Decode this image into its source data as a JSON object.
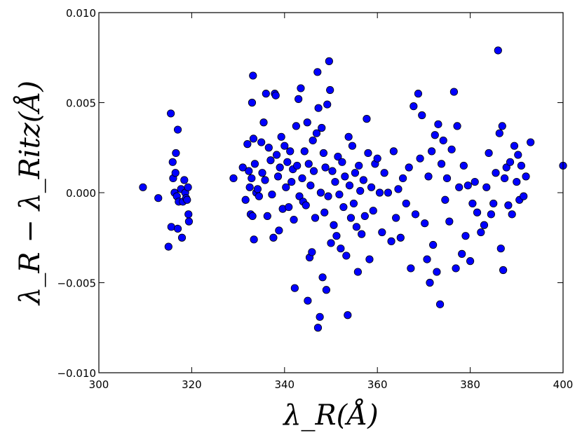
{
  "chart_data": {
    "type": "scatter",
    "title": "",
    "xlabel": "λ_R(Å)",
    "ylabel": "λ_R − λ_Ritz(Å)",
    "xlim": [
      300,
      400
    ],
    "ylim": [
      -0.01,
      0.01
    ],
    "xticks": [
      300,
      320,
      340,
      360,
      380,
      400
    ],
    "yticks": [
      -0.01,
      -0.005,
      0.0,
      0.005,
      0.01
    ],
    "xtick_labels": [
      "300",
      "320",
      "340",
      "360",
      "380",
      "400"
    ],
    "ytick_labels": [
      "−0.010",
      "−0.005",
      "0.000",
      "0.005",
      "0.010"
    ],
    "grid": false,
    "marker_color": "#0000ff",
    "marker_edge": "#000000",
    "series": [
      {
        "points": [
          [
            309.5,
            0.0003
          ],
          [
            312.8,
            -0.0003
          ],
          [
            315.0,
            -0.003
          ],
          [
            315.5,
            0.0044
          ],
          [
            315.6,
            -0.0019
          ],
          [
            315.9,
            0.0017
          ],
          [
            316.0,
            0.0008
          ],
          [
            316.3,
            0.0
          ],
          [
            316.5,
            0.0011
          ],
          [
            316.6,
            0.0022
          ],
          [
            316.8,
            -0.0002
          ],
          [
            317.0,
            0.0035
          ],
          [
            317.0,
            -0.002
          ],
          [
            317.2,
            -0.0005
          ],
          [
            317.7,
            0.0002
          ],
          [
            317.9,
            -0.0025
          ],
          [
            318.1,
            -0.0005
          ],
          [
            318.4,
            0.0007
          ],
          [
            318.6,
            0.0
          ],
          [
            318.8,
            -0.0003
          ],
          [
            319.0,
            -0.0004
          ],
          [
            319.2,
            0.0003
          ],
          [
            319.3,
            -0.0012
          ],
          [
            319.4,
            -0.0016
          ],
          [
            329.0,
            0.0008
          ],
          [
            331.0,
            0.0014
          ],
          [
            331.6,
            -0.0004
          ],
          [
            332.0,
            0.0027
          ],
          [
            332.3,
            0.0012
          ],
          [
            332.5,
            0.0003
          ],
          [
            332.7,
            -0.0012
          ],
          [
            332.9,
            0.0008
          ],
          [
            333.0,
            0.005
          ],
          [
            333.1,
            -0.0013
          ],
          [
            333.2,
            0.0065
          ],
          [
            333.3,
            0.003
          ],
          [
            333.4,
            -0.0026
          ],
          [
            333.6,
            0.0016
          ],
          [
            333.9,
            0.0
          ],
          [
            334.2,
            0.0002
          ],
          [
            334.5,
            -0.0002
          ],
          [
            335.0,
            0.0028
          ],
          [
            335.2,
            0.0011
          ],
          [
            335.5,
            0.0039
          ],
          [
            335.8,
            0.0007
          ],
          [
            336.0,
            0.0055
          ],
          [
            336.3,
            -0.0013
          ],
          [
            336.6,
            0.0025
          ],
          [
            337.0,
            0.0018
          ],
          [
            337.3,
            -0.0001
          ],
          [
            337.6,
            -0.0025
          ],
          [
            337.9,
            0.0055
          ],
          [
            338.1,
            0.0054
          ],
          [
            338.3,
            0.0021
          ],
          [
            338.6,
            0.0009
          ],
          [
            338.8,
            -0.0021
          ],
          [
            339.0,
            0.0014
          ],
          [
            339.3,
            0.0031
          ],
          [
            339.6,
            -0.0009
          ],
          [
            340.0,
            0.0026
          ],
          [
            340.3,
            0.0003
          ],
          [
            340.6,
            0.0017
          ],
          [
            340.9,
            -0.0008
          ],
          [
            341.2,
            0.0023
          ],
          [
            341.5,
            0.0006
          ],
          [
            341.8,
            0.0013
          ],
          [
            342.0,
            -0.0015
          ],
          [
            342.2,
            -0.0053
          ],
          [
            342.5,
            0.0037
          ],
          [
            342.7,
            0.0015
          ],
          [
            343.0,
            0.0052
          ],
          [
            343.2,
            -0.0002
          ],
          [
            343.5,
            0.0058
          ],
          [
            343.8,
            0.0008
          ],
          [
            344.0,
            -0.0005
          ],
          [
            344.3,
            0.0023
          ],
          [
            344.6,
            -0.0007
          ],
          [
            344.9,
            0.0039
          ],
          [
            345.0,
            -0.006
          ],
          [
            345.2,
            0.0016
          ],
          [
            345.4,
            -0.0036
          ],
          [
            345.6,
            0.0004
          ],
          [
            345.9,
            -0.0033
          ],
          [
            346.1,
            0.0029
          ],
          [
            346.3,
            0.0012
          ],
          [
            346.6,
            -0.0014
          ],
          [
            346.9,
            0.0033
          ],
          [
            347.1,
            0.0067
          ],
          [
            347.2,
            -0.0075
          ],
          [
            347.3,
            0.0047
          ],
          [
            347.6,
            -0.0069
          ],
          [
            347.8,
            0.0
          ],
          [
            348.0,
            0.0036
          ],
          [
            348.2,
            -0.0047
          ],
          [
            348.4,
            0.0022
          ],
          [
            348.6,
            -0.0011
          ],
          [
            348.8,
            0.0014
          ],
          [
            349.0,
            -0.0054
          ],
          [
            349.2,
            0.0049
          ],
          [
            349.4,
            -0.0002
          ],
          [
            349.6,
            0.0073
          ],
          [
            349.8,
            0.0057
          ],
          [
            350.0,
            -0.0028
          ],
          [
            350.3,
            0.0012
          ],
          [
            350.6,
            -0.0018
          ],
          [
            350.9,
            0.0006
          ],
          [
            351.2,
            -0.0024
          ],
          [
            351.5,
            0.002
          ],
          [
            351.8,
            -0.0001
          ],
          [
            352.1,
            -0.0031
          ],
          [
            352.4,
            0.0017
          ],
          [
            352.7,
            -0.0008
          ],
          [
            353.0,
            0.0009
          ],
          [
            353.3,
            -0.0035
          ],
          [
            353.6,
            -0.0068
          ],
          [
            353.8,
            0.0031
          ],
          [
            354.0,
            0.0004
          ],
          [
            354.3,
            -0.0014
          ],
          [
            354.6,
            0.0026
          ],
          [
            354.9,
            -0.0006
          ],
          [
            355.2,
            0.0011
          ],
          [
            355.5,
            -0.0019
          ],
          [
            355.8,
            -0.0044
          ],
          [
            356.0,
            0.0015
          ],
          [
            356.3,
            0.0001
          ],
          [
            356.6,
            -0.0023
          ],
          [
            357.0,
            0.0007
          ],
          [
            357.3,
            -0.0013
          ],
          [
            357.7,
            0.0041
          ],
          [
            358.0,
            0.0022
          ],
          [
            358.3,
            -0.0037
          ],
          [
            358.7,
            0.0003
          ],
          [
            359.1,
            -0.001
          ],
          [
            359.5,
            0.0016
          ],
          [
            360.0,
            0.0019
          ],
          [
            360.5,
            0.0
          ],
          [
            361.0,
            -0.0022
          ],
          [
            361.5,
            0.0011
          ],
          [
            362.3,
            0.0
          ],
          [
            363.0,
            -0.0027
          ],
          [
            363.5,
            0.0023
          ],
          [
            364.0,
            -0.0014
          ],
          [
            364.5,
            0.0002
          ],
          [
            365.0,
            -0.0025
          ],
          [
            365.5,
            0.0008
          ],
          [
            366.2,
            -0.0006
          ],
          [
            366.8,
            0.0014
          ],
          [
            367.2,
            -0.0042
          ],
          [
            367.8,
            0.0048
          ],
          [
            368.2,
            -0.0012
          ],
          [
            368.8,
            0.0055
          ],
          [
            369.2,
            0.0019
          ],
          [
            369.6,
            0.0043
          ],
          [
            370.2,
            -0.0017
          ],
          [
            370.7,
            -0.0037
          ],
          [
            371.0,
            0.0009
          ],
          [
            371.3,
            -0.005
          ],
          [
            371.7,
            0.0023
          ],
          [
            372.0,
            -0.0029
          ],
          [
            372.4,
            0.0032
          ],
          [
            372.8,
            -0.0044
          ],
          [
            373.1,
            0.0038
          ],
          [
            373.5,
            -0.0062
          ],
          [
            373.8,
            0.0016
          ],
          [
            374.2,
            0.0029
          ],
          [
            374.6,
            -0.0004
          ],
          [
            375.0,
            0.0008
          ],
          [
            375.5,
            -0.0016
          ],
          [
            376.0,
            0.0024
          ],
          [
            376.5,
            0.0056
          ],
          [
            376.9,
            -0.0042
          ],
          [
            377.2,
            0.0037
          ],
          [
            377.6,
            0.0003
          ],
          [
            378.2,
            -0.0034
          ],
          [
            378.6,
            0.0015
          ],
          [
            379.0,
            -0.0024
          ],
          [
            379.5,
            0.0004
          ],
          [
            380.0,
            -0.0038
          ],
          [
            380.5,
            -0.0006
          ],
          [
            381.0,
            0.0006
          ],
          [
            381.5,
            -0.0011
          ],
          [
            382.3,
            -0.0022
          ],
          [
            383.0,
            -0.0018
          ],
          [
            383.5,
            0.0003
          ],
          [
            384.0,
            0.0022
          ],
          [
            384.5,
            -0.0012
          ],
          [
            385.0,
            -0.0006
          ],
          [
            385.5,
            0.0011
          ],
          [
            386.0,
            0.0079
          ],
          [
            386.3,
            0.0033
          ],
          [
            386.6,
            -0.0031
          ],
          [
            386.9,
            0.0037
          ],
          [
            387.1,
            -0.0043
          ],
          [
            387.4,
            0.0008
          ],
          [
            387.8,
            0.0014
          ],
          [
            388.2,
            -0.0007
          ],
          [
            388.6,
            0.0017
          ],
          [
            389.0,
            -0.0012
          ],
          [
            389.5,
            0.0026
          ],
          [
            390.0,
            0.0006
          ],
          [
            390.3,
            0.0021
          ],
          [
            390.6,
            -0.0004
          ],
          [
            391.0,
            0.0015
          ],
          [
            391.5,
            -0.0002
          ],
          [
            392.0,
            0.0009
          ],
          [
            393.0,
            0.0028
          ],
          [
            400.0,
            0.0015
          ]
        ]
      }
    ]
  }
}
